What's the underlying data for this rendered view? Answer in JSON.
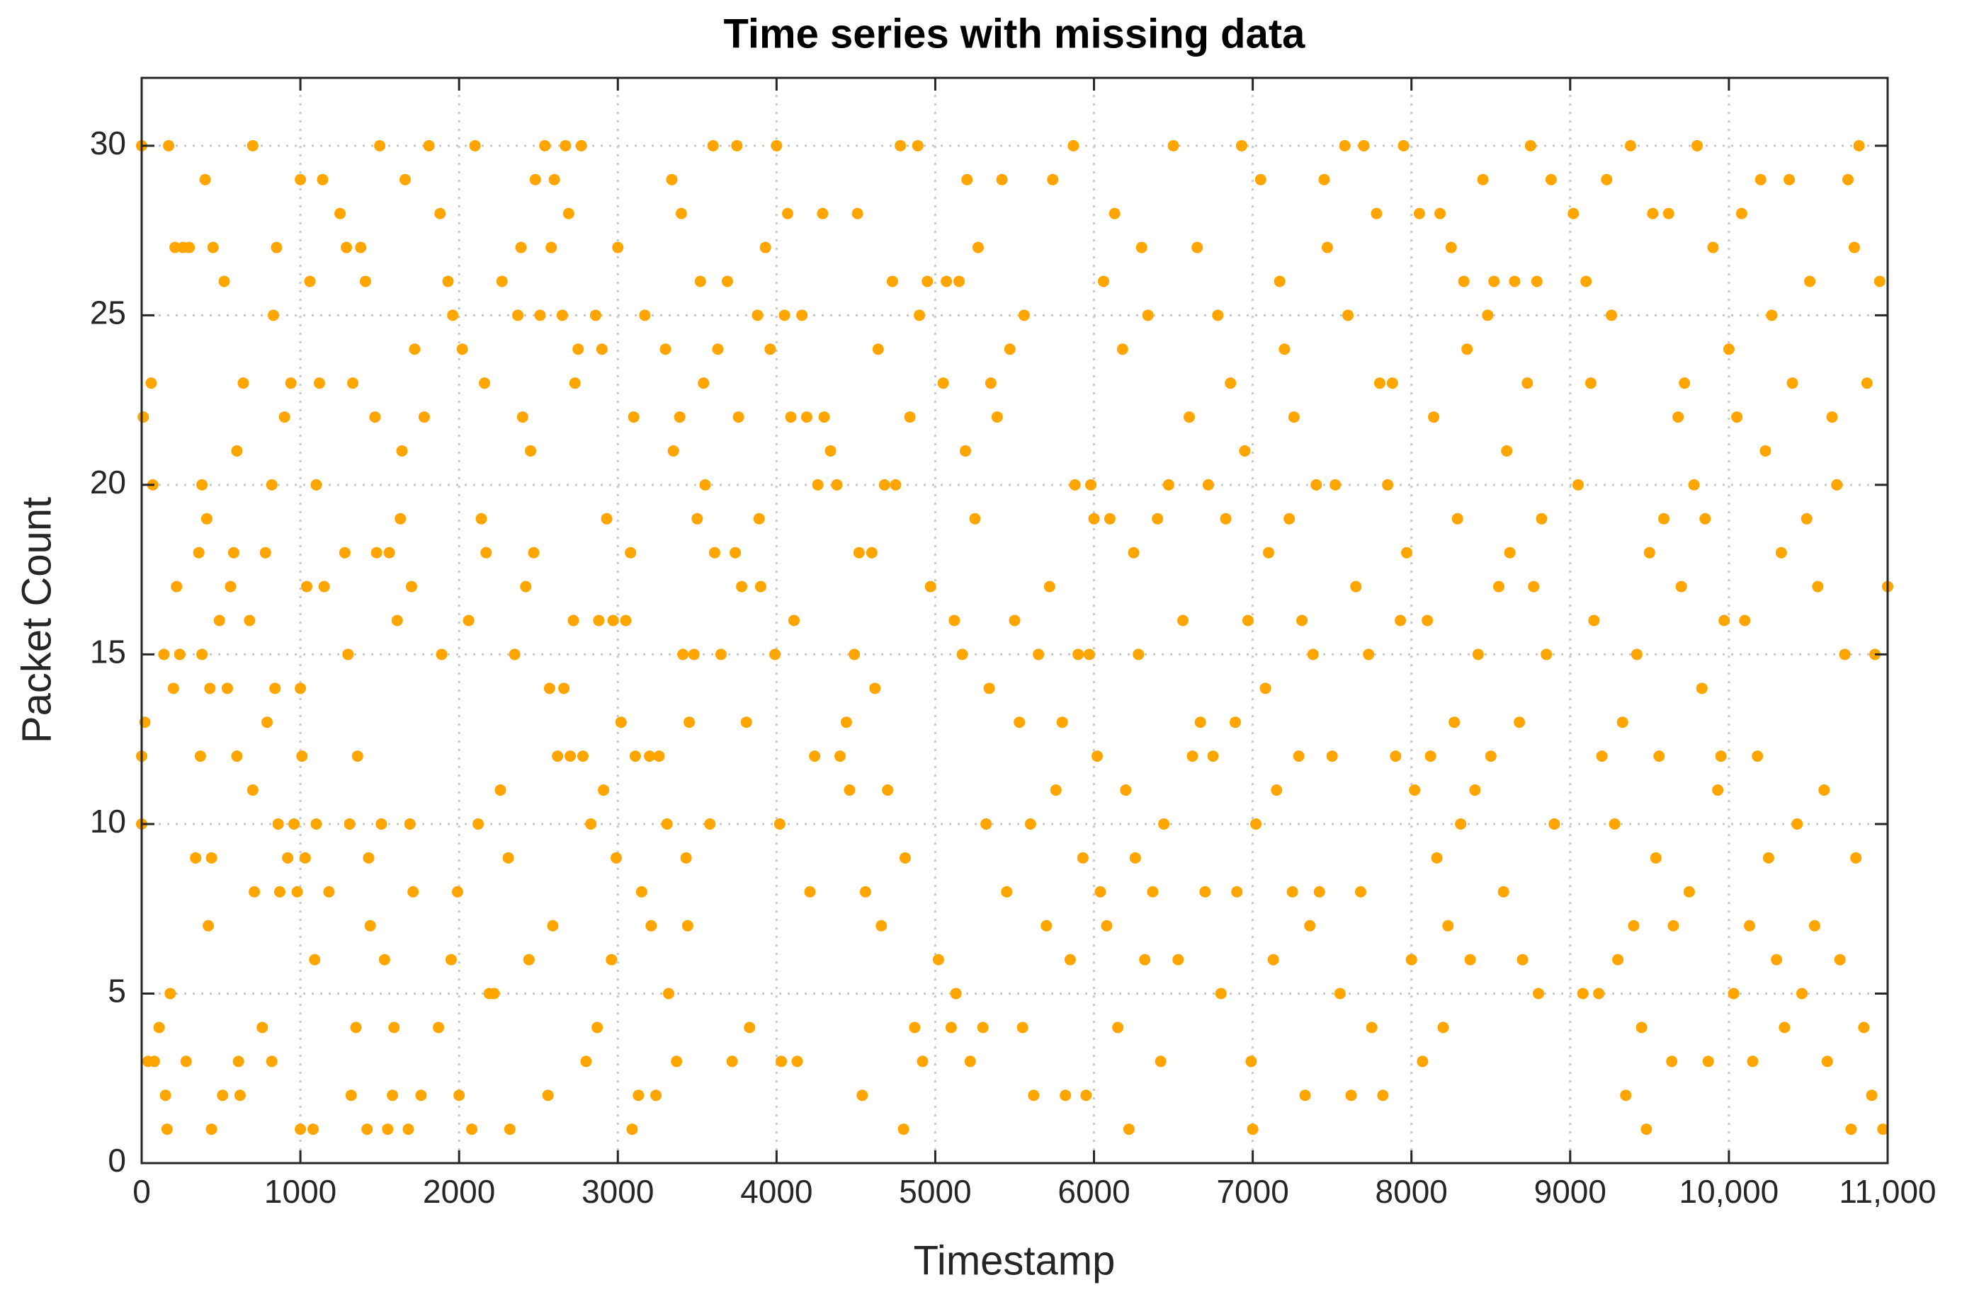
{
  "chart_data": {
    "type": "scatter",
    "title": "Time series with missing data",
    "x_label": "Timestamp",
    "y_label": "Packet Count",
    "color": "#ffa500",
    "grid": true,
    "xlim": [
      0,
      11000
    ],
    "ylim": [
      0,
      32
    ],
    "xticks": [
      0,
      1000,
      2000,
      3000,
      4000,
      5000,
      6000,
      7000,
      8000,
      9000,
      {
        "value": 10000,
        "label": "10,000"
      },
      {
        "value": 11000,
        "label": "11,000"
      }
    ],
    "yticks": [
      0,
      5,
      10,
      15,
      20,
      25,
      30
    ],
    "x": [
      0,
      0,
      0,
      10,
      20,
      40,
      60,
      70,
      80,
      110,
      140,
      150,
      160,
      170,
      180,
      200,
      210,
      220,
      240,
      260,
      280,
      300,
      340,
      360,
      370,
      380,
      380,
      400,
      410,
      420,
      430,
      440,
      440,
      450,
      490,
      510,
      520,
      540,
      560,
      580,
      600,
      600,
      610,
      620,
      640,
      680,
      700,
      700,
      710,
      760,
      780,
      790,
      820,
      820,
      830,
      840,
      850,
      860,
      870,
      900,
      920,
      940,
      960,
      980,
      1000,
      1000,
      1000,
      1010,
      1030,
      1040,
      1060,
      1080,
      1090,
      1100,
      1100,
      1120,
      1140,
      1150,
      1180,
      1250,
      1280,
      1290,
      1300,
      1310,
      1320,
      1330,
      1350,
      1360,
      1380,
      1410,
      1420,
      1430,
      1440,
      1470,
      1480,
      1500,
      1510,
      1530,
      1550,
      1560,
      1580,
      1590,
      1610,
      1630,
      1640,
      1660,
      1680,
      1690,
      1700,
      1710,
      1720,
      1760,
      1780,
      1810,
      1870,
      1880,
      1890,
      1930,
      1950,
      1960,
      1990,
      2000,
      2020,
      2060,
      2080,
      2100,
      2120,
      2140,
      2160,
      2170,
      2190,
      2220,
      2260,
      2270,
      2310,
      2320,
      2350,
      2370,
      2390,
      2400,
      2420,
      2440,
      2450,
      2470,
      2480,
      2510,
      2540,
      2560,
      2570,
      2580,
      2590,
      2600,
      2620,
      2650,
      2660,
      2670,
      2690,
      2700,
      2720,
      2730,
      2750,
      2770,
      2780,
      2800,
      2830,
      2860,
      2870,
      2880,
      2900,
      2910,
      2930,
      2960,
      2970,
      2990,
      3000,
      3020,
      3050,
      3080,
      3090,
      3100,
      3110,
      3130,
      3150,
      3170,
      3200,
      3210,
      3240,
      3260,
      3300,
      3310,
      3320,
      3340,
      3350,
      3370,
      3390,
      3400,
      3410,
      3430,
      3440,
      3450,
      3480,
      3500,
      3520,
      3540,
      3550,
      3580,
      3600,
      3610,
      3630,
      3650,
      3690,
      3720,
      3740,
      3750,
      3760,
      3780,
      3810,
      3830,
      3880,
      3890,
      3900,
      3930,
      3960,
      3990,
      4000,
      4020,
      4030,
      4050,
      4070,
      4090,
      4110,
      4130,
      4160,
      4190,
      4210,
      4240,
      4260,
      4290,
      4300,
      4340,
      4380,
      4400,
      4440,
      4460,
      4490,
      4510,
      4520,
      4540,
      4560,
      4600,
      4620,
      4640,
      4660,
      4680,
      4700,
      4730,
      4750,
      4780,
      4800,
      4810,
      4840,
      4870,
      4890,
      4900,
      4920,
      4950,
      4970,
      5020,
      5050,
      5070,
      5100,
      5120,
      5130,
      5150,
      5170,
      5190,
      5200,
      5220,
      5250,
      5270,
      5300,
      5320,
      5340,
      5350,
      5390,
      5420,
      5450,
      5470,
      5500,
      5530,
      5550,
      5560,
      5600,
      5620,
      5650,
      5700,
      5720,
      5740,
      5760,
      5800,
      5820,
      5850,
      5870,
      5880,
      5900,
      5930,
      5950,
      5970,
      5980,
      6000,
      6020,
      6040,
      6060,
      6080,
      6100,
      6130,
      6150,
      6180,
      6200,
      6220,
      6250,
      6260,
      6280,
      6300,
      6320,
      6340,
      6370,
      6400,
      6420,
      6440,
      6470,
      6500,
      6530,
      6560,
      6600,
      6620,
      6650,
      6670,
      6700,
      6720,
      6750,
      6780,
      6800,
      6830,
      6860,
      6890,
      6900,
      6930,
      6950,
      6970,
      6990,
      7000,
      7020,
      7050,
      7080,
      7100,
      7130,
      7150,
      7170,
      7200,
      7230,
      7250,
      7260,
      7290,
      7310,
      7330,
      7360,
      7380,
      7400,
      7420,
      7450,
      7470,
      7500,
      7520,
      7550,
      7580,
      7600,
      7620,
      7650,
      7680,
      7700,
      7730,
      7750,
      7780,
      7800,
      7820,
      7850,
      7880,
      7900,
      7930,
      7950,
      7970,
      8000,
      8020,
      8050,
      8070,
      8100,
      8120,
      8140,
      8160,
      8180,
      8200,
      8230,
      8250,
      8270,
      8290,
      8310,
      8330,
      8350,
      8370,
      8400,
      8420,
      8450,
      8480,
      8500,
      8520,
      8550,
      8580,
      8600,
      8620,
      8650,
      8680,
      8700,
      8730,
      8750,
      8770,
      8790,
      8800,
      8820,
      8850,
      8880,
      8900,
      9020,
      9050,
      9080,
      9100,
      9130,
      9150,
      9180,
      9200,
      9230,
      9260,
      9280,
      9300,
      9330,
      9350,
      9380,
      9400,
      9420,
      9450,
      9480,
      9500,
      9520,
      9540,
      9560,
      9590,
      9620,
      9640,
      9650,
      9680,
      9700,
      9720,
      9750,
      9780,
      9800,
      9830,
      9850,
      9870,
      9900,
      9930,
      9950,
      9970,
      10000,
      10030,
      10050,
      10080,
      10100,
      10130,
      10150,
      10180,
      10200,
      10230,
      10250,
      10270,
      10300,
      10330,
      10350,
      10380,
      10400,
      10430,
      10460,
      10490,
      10510,
      10540,
      10560,
      10600,
      10620,
      10650,
      10680,
      10700,
      10730,
      10750,
      10770,
      10790,
      10800,
      10820,
      10850,
      10870,
      10900,
      10920,
      10950,
      10970,
      11000
    ],
    "values": [
      30,
      12,
      10,
      22,
      13,
      3,
      23,
      20,
      3,
      4,
      15,
      2,
      1,
      30,
      5,
      14,
      27,
      17,
      15,
      27,
      3,
      27,
      9,
      18,
      12,
      20,
      15,
      29,
      19,
      7,
      14,
      9,
      1,
      27,
      16,
      2,
      26,
      14,
      17,
      18,
      21,
      12,
      3,
      2,
      23,
      16,
      30,
      11,
      8,
      4,
      18,
      13,
      20,
      3,
      25,
      14,
      27,
      10,
      8,
      22,
      9,
      23,
      10,
      8,
      29,
      14,
      1,
      12,
      9,
      17,
      26,
      1,
      6,
      20,
      10,
      23,
      29,
      17,
      8,
      28,
      18,
      27,
      15,
      10,
      2,
      23,
      4,
      12,
      27,
      26,
      1,
      9,
      7,
      22,
      18,
      30,
      10,
      6,
      1,
      18,
      2,
      4,
      16,
      19,
      21,
      29,
      1,
      10,
      17,
      8,
      24,
      2,
      22,
      30,
      4,
      28,
      15,
      26,
      6,
      25,
      8,
      2,
      24,
      16,
      1,
      30,
      10,
      19,
      23,
      18,
      5,
      5,
      11,
      26,
      9,
      1,
      15,
      25,
      27,
      22,
      17,
      6,
      21,
      18,
      29,
      25,
      30,
      2,
      14,
      27,
      7,
      29,
      12,
      25,
      14,
      30,
      28,
      12,
      16,
      23,
      24,
      30,
      12,
      3,
      10,
      25,
      4,
      16,
      24,
      11,
      19,
      6,
      16,
      9,
      27,
      13,
      16,
      18,
      1,
      22,
      12,
      2,
      8,
      25,
      12,
      7,
      2,
      12,
      24,
      10,
      5,
      29,
      21,
      3,
      22,
      28,
      15,
      9,
      7,
      13,
      15,
      19,
      26,
      23,
      20,
      10,
      30,
      18,
      24,
      15,
      26,
      3,
      18,
      30,
      22,
      17,
      13,
      4,
      25,
      19,
      17,
      27,
      24,
      15,
      30,
      10,
      3,
      25,
      28,
      22,
      16,
      3,
      25,
      22,
      8,
      12,
      20,
      28,
      22,
      21,
      20,
      12,
      13,
      11,
      15,
      28,
      18,
      2,
      8,
      18,
      14,
      24,
      7,
      20,
      11,
      26,
      20,
      30,
      1,
      9,
      22,
      4,
      30,
      25,
      3,
      26,
      17,
      6,
      23,
      26,
      4,
      16,
      5,
      26,
      15,
      21,
      29,
      3,
      19,
      27,
      4,
      10,
      14,
      23,
      22,
      29,
      8,
      24,
      16,
      13,
      4,
      25,
      10,
      2,
      15,
      7,
      17,
      29,
      11,
      13,
      2,
      6,
      30,
      20,
      15,
      9,
      2,
      15,
      20,
      19,
      12,
      8,
      26,
      7,
      19,
      28,
      4,
      24,
      11,
      1,
      18,
      9,
      15,
      27,
      6,
      25,
      8,
      19,
      3,
      10,
      20,
      30,
      6,
      16,
      22,
      12,
      27,
      13,
      8,
      20,
      12,
      25,
      5,
      19,
      23,
      13,
      8,
      30,
      21,
      16,
      3,
      1,
      10,
      29,
      14,
      18,
      6,
      11,
      26,
      24,
      19,
      8,
      22,
      12,
      16,
      2,
      7,
      15,
      20,
      8,
      29,
      27,
      12,
      20,
      5,
      30,
      25,
      2,
      17,
      8,
      30,
      15,
      4,
      28,
      23,
      2,
      20,
      23,
      12,
      16,
      30,
      18,
      6,
      11,
      28,
      3,
      16,
      12,
      22,
      9,
      28,
      4,
      7,
      27,
      13,
      19,
      10,
      26,
      24,
      6,
      11,
      15,
      29,
      25,
      12,
      26,
      17,
      8,
      21,
      18,
      26,
      13,
      6,
      23,
      30,
      17,
      26,
      5,
      19,
      15,
      29,
      10,
      28,
      20,
      5,
      26,
      23,
      16,
      5,
      12,
      29,
      25,
      10,
      6,
      13,
      2,
      30,
      7,
      15,
      4,
      1,
      18,
      28,
      9,
      12,
      19,
      28,
      3,
      7,
      22,
      17,
      23,
      8,
      20,
      30,
      14,
      19,
      3,
      27,
      11,
      12,
      16,
      24,
      5,
      22,
      28,
      16,
      7,
      3,
      12,
      29,
      21,
      9,
      25,
      6,
      18,
      4,
      29,
      23,
      10,
      5,
      19,
      26,
      7,
      17,
      11,
      3,
      22,
      20,
      6,
      15,
      29,
      1,
      27,
      9,
      30,
      4,
      23,
      2,
      15,
      26,
      1,
      17
    ]
  }
}
